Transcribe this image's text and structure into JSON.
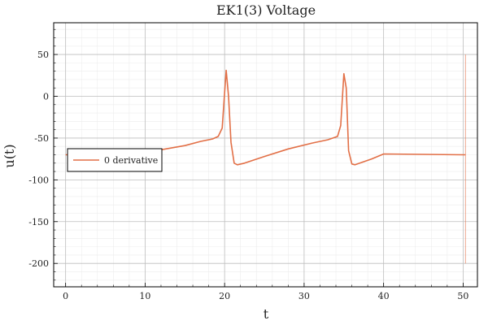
{
  "chart_data": {
    "type": "line",
    "title": "EK1(3) Voltage",
    "xlabel": "t",
    "ylabel": "u(t)",
    "xlim": [
      -1.5,
      51.8
    ],
    "ylim": [
      -228,
      88
    ],
    "xticks": [
      0,
      10,
      20,
      30,
      40,
      50
    ],
    "yticks": [
      -200,
      -150,
      -100,
      -50,
      0,
      50
    ],
    "grid": true,
    "minor_grid": true,
    "legend_position": "left",
    "colors": {
      "series": "#e26f46",
      "major_grid": "#bdbdbd",
      "minor_grid": "#ececec",
      "axis": "#000000"
    },
    "series": [
      {
        "name": "0 derivative",
        "x": [
          0,
          5,
          10,
          12,
          15,
          17,
          18.5,
          19.2,
          19.7,
          20.0,
          20.2,
          20.5,
          20.8,
          21.2,
          21.6,
          22.5,
          25,
          28,
          31,
          33,
          34.2,
          34.6,
          35.0,
          35.3,
          35.6,
          36.0,
          36.4,
          37,
          38.5,
          40,
          45,
          50,
          50.3
        ],
        "y": [
          -70,
          -69,
          -67,
          -64,
          -59,
          -54,
          -51,
          -48,
          -38,
          5,
          31,
          0,
          -55,
          -80,
          -82,
          -80,
          -72,
          -63,
          -56,
          -52,
          -48,
          -35,
          27,
          10,
          -65,
          -81,
          -82,
          -80,
          -75,
          -69,
          -69.5,
          -70,
          -70
        ],
        "spike": {
          "x": 50.3,
          "y_top": 50,
          "y_bottom": -200
        }
      }
    ]
  }
}
